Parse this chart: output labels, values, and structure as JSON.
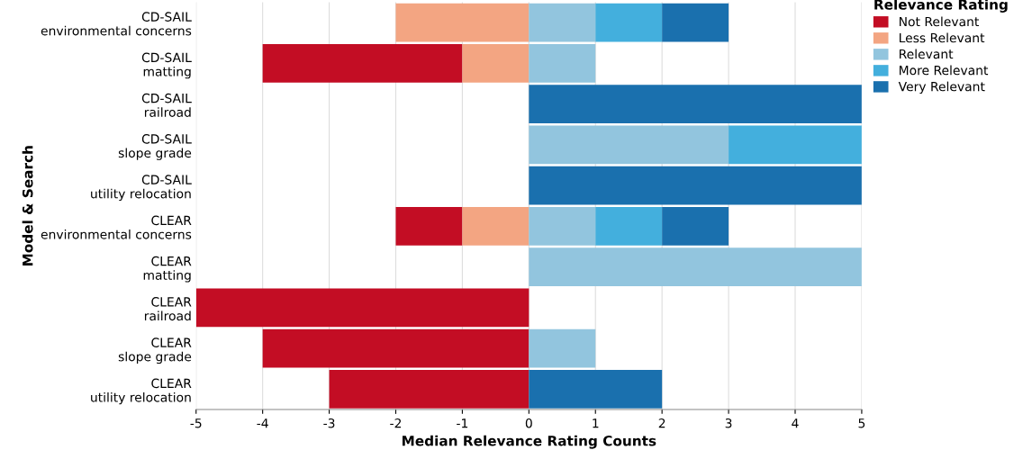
{
  "chart_data": {
    "type": "bar",
    "orientation": "horizontal",
    "xlabel": "Median Relevance Rating Counts",
    "ylabel": "Model & Search",
    "legend_title": "Relevance Rating",
    "legend": "top right",
    "grid": "x",
    "categories": [
      "CD-SAIL\nenvironmental concerns",
      "CD-SAIL\nmatting",
      "CD-SAIL\nrailroad",
      "CD-SAIL\nslope grade",
      "CD-SAIL\nutility relocation",
      "CLEAR\nenvironmental concerns",
      "CLEAR\nmatting",
      "CLEAR\nrailroad",
      "CLEAR\nslope grade",
      "CLEAR\nutility relocation"
    ],
    "xlim": [
      -5,
      5
    ],
    "xticks": [
      -5,
      -4,
      -3,
      -2,
      -1,
      0,
      1,
      2,
      3,
      4,
      5
    ],
    "series": [
      {
        "name": "Not Relevant",
        "color": "#c30d24",
        "base": [
          null,
          -1,
          null,
          null,
          null,
          -1,
          null,
          0,
          0,
          0
        ],
        "values": [
          null,
          -3,
          null,
          null,
          null,
          -1,
          null,
          -5,
          -4,
          -3
        ]
      },
      {
        "name": "Less Relevant",
        "color": "#f3a582",
        "base": [
          0,
          0,
          null,
          null,
          null,
          0,
          null,
          null,
          null,
          null
        ],
        "values": [
          -2,
          -1,
          null,
          null,
          null,
          -1,
          null,
          null,
          null,
          null
        ]
      },
      {
        "name": "Relevant",
        "color": "#92c5de",
        "base": [
          0,
          0,
          null,
          0,
          null,
          0,
          0,
          null,
          0,
          null
        ],
        "values": [
          1,
          1,
          null,
          3,
          null,
          1,
          5,
          null,
          1,
          null
        ]
      },
      {
        "name": "More Relevant",
        "color": "#43afdd",
        "base": [
          1,
          null,
          null,
          3,
          null,
          1,
          null,
          null,
          null,
          null
        ],
        "values": [
          1,
          null,
          null,
          2,
          null,
          1,
          null,
          null,
          null,
          null
        ]
      },
      {
        "name": "Very Relevant",
        "color": "#1a70ae",
        "base": [
          2,
          null,
          0,
          null,
          0,
          2,
          null,
          null,
          null,
          0
        ],
        "values": [
          1,
          null,
          5,
          null,
          5,
          1,
          null,
          null,
          null,
          2
        ]
      }
    ]
  }
}
